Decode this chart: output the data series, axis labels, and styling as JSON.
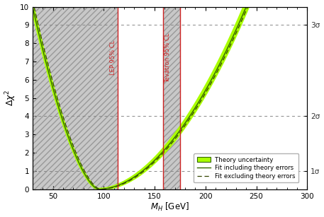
{
  "xlim": [
    30,
    300
  ],
  "ylim": [
    0,
    10
  ],
  "xlabel": "M_{H} [GeV]",
  "ylabel": "Δχ²",
  "bg_color": "#ffffff",
  "hatch_fill_color": "#c8c8c8",
  "hatch_edge_color": "#999999",
  "curve_min_x": 95,
  "lep_line_x": 114,
  "tev_line1_x": 158,
  "tev_line2_x": 175,
  "sigma_levels": [
    1,
    4,
    9
  ],
  "sigma_labels": [
    "1σ",
    "2σ",
    "3σ"
  ],
  "legend_items": [
    "Theory uncertainty",
    "Fit including theory errors",
    "Fit excluding theory errors"
  ],
  "xticks": [
    50,
    100,
    150,
    200,
    250,
    300
  ],
  "yticks": [
    0,
    1,
    2,
    3,
    4,
    5,
    6,
    7,
    8,
    9,
    10
  ],
  "band_color": "#aaff00",
  "curve_color": "#336600",
  "dashed_color": "#334400"
}
